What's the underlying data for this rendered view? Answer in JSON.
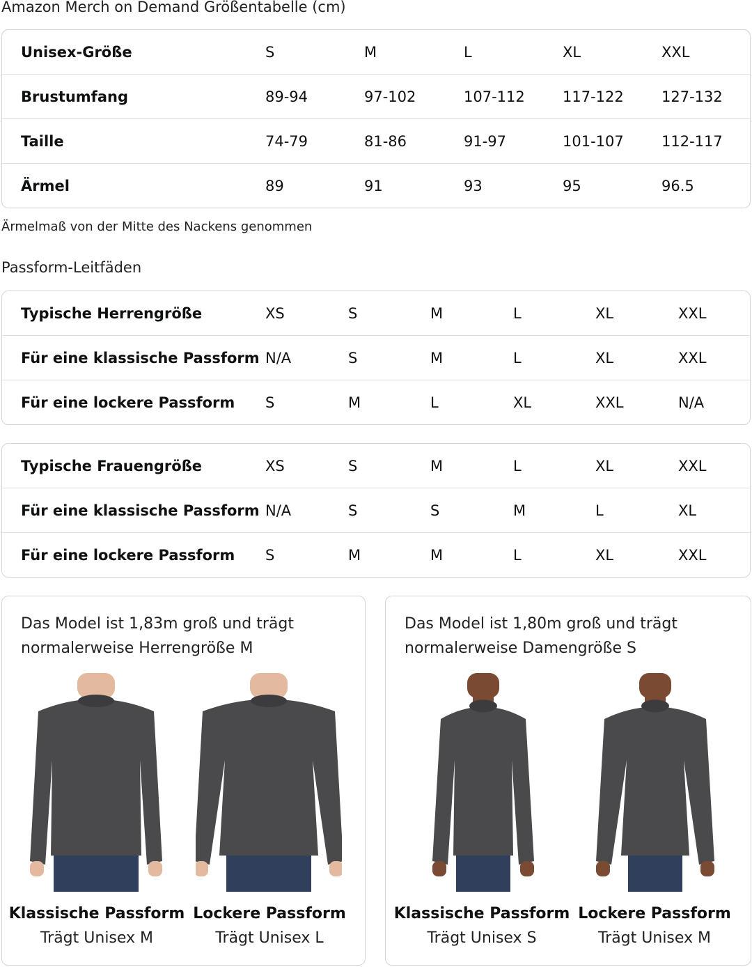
{
  "title": "Amazon Merch on Demand Größentabelle (cm)",
  "size_table": {
    "rows": [
      {
        "label": "Unisex-Größe",
        "values": [
          "S",
          "M",
          "L",
          "XL",
          "XXL"
        ]
      },
      {
        "label": "Brustumfang",
        "values": [
          "89-94",
          "97-102",
          "107-112",
          "117-122",
          "127-132"
        ]
      },
      {
        "label": "Taille",
        "values": [
          "74-79",
          "81-86",
          "91-97",
          "101-107",
          "112-117"
        ]
      },
      {
        "label": "Ärmel",
        "values": [
          "89",
          "91",
          "93",
          "95",
          "96.5"
        ]
      }
    ]
  },
  "note": "Ärmelmaß von der Mitte des Nackens genommen",
  "fit_title": "Passform-Leitfäden",
  "men_table": {
    "rows": [
      {
        "label": "Typische Herrengröße",
        "values": [
          "XS",
          "S",
          "M",
          "L",
          "XL",
          "XXL"
        ]
      },
      {
        "label": "Für eine klassische Passform",
        "values": [
          "N/A",
          "S",
          "M",
          "L",
          "XL",
          "XXL"
        ]
      },
      {
        "label": "Für eine lockere Passform",
        "values": [
          "S",
          "M",
          "L",
          "XL",
          "XXL",
          "N/A"
        ]
      }
    ]
  },
  "women_table": {
    "rows": [
      {
        "label": "Typische Frauengröße",
        "values": [
          "XS",
          "S",
          "M",
          "L",
          "XL",
          "XXL"
        ]
      },
      {
        "label": "Für eine klassische Passform",
        "values": [
          "N/A",
          "S",
          "S",
          "M",
          "L",
          "XL"
        ]
      },
      {
        "label": "Für eine lockere Passform",
        "values": [
          "S",
          "M",
          "M",
          "L",
          "XL",
          "XXL"
        ]
      }
    ]
  },
  "cards": [
    {
      "text": "Das Model ist 1,83m groß und trägt normalerweise Herrengröße M",
      "models": [
        {
          "fit": "Klassische Passform",
          "wears": "Trägt Unisex M",
          "skin": "#e3b9a0",
          "kind": "man-classic"
        },
        {
          "fit": "Lockere Passform",
          "wears": "Trägt Unisex L",
          "skin": "#e3b9a0",
          "kind": "man-relaxed"
        }
      ]
    },
    {
      "text": "Das Model ist 1,80m groß und trägt normalerweise Damengröße S",
      "models": [
        {
          "fit": "Klassische Passform",
          "wears": "Trägt Unisex S",
          "skin": "#7a4a33",
          "kind": "woman-classic"
        },
        {
          "fit": "Lockere Passform",
          "wears": "Trägt Unisex M",
          "skin": "#7a4a33",
          "kind": "woman-relaxed"
        }
      ]
    }
  ],
  "colors": {
    "sweatshirt": "#4a4a4c",
    "jeans": "#2f3f5c",
    "border": "#d5d5d5"
  }
}
